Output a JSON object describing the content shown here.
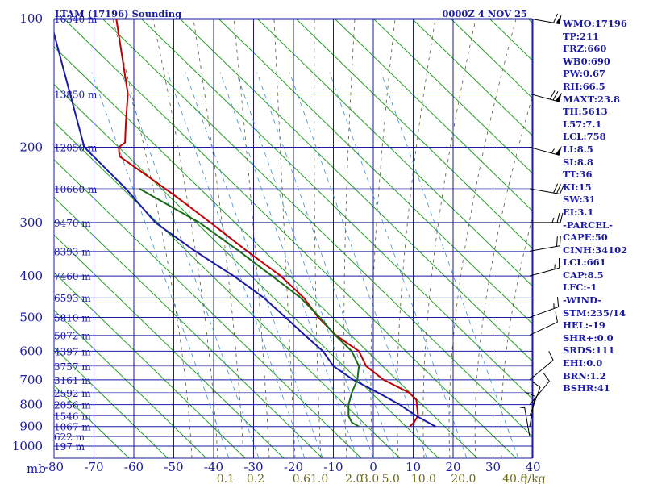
{
  "header": {
    "station": "LTAM (17196) Sounding",
    "time": "0000Z  4 NOV 25"
  },
  "chart_data": {
    "type": "line",
    "x_axis_label": "mb",
    "x_ticks": [
      -80,
      -70,
      -60,
      -50,
      -40,
      -30,
      -20,
      -10,
      0,
      10,
      20,
      30,
      40
    ],
    "p_ticks": [
      100,
      200,
      300,
      400,
      500,
      600,
      700,
      800,
      900,
      1000
    ],
    "height_labels": [
      {
        "p": 100,
        "text": "16340 m"
      },
      {
        "p": 150,
        "text": "13850 m"
      },
      {
        "p": 200,
        "text": "12050 m"
      },
      {
        "p": 250,
        "text": "10660 m"
      },
      {
        "p": 300,
        "text": "9470 m"
      },
      {
        "p": 350,
        "text": "8393 m"
      },
      {
        "p": 400,
        "text": "7460 m"
      },
      {
        "p": 450,
        "text": "6593 m"
      },
      {
        "p": 500,
        "text": "5810 m"
      },
      {
        "p": 550,
        "text": "5072 m"
      },
      {
        "p": 600,
        "text": "4397 m"
      },
      {
        "p": 650,
        "text": "3757 m"
      },
      {
        "p": 700,
        "text": "3161 m"
      },
      {
        "p": 750,
        "text": "2592 m"
      },
      {
        "p": 800,
        "text": "2056 m"
      },
      {
        "p": 850,
        "text": "1546 m"
      },
      {
        "p": 900,
        "text": "1067 m"
      },
      {
        "p": 950,
        "text": "622 m"
      },
      {
        "p": 1000,
        "text": "197 m"
      }
    ],
    "mixing_ratio_labels": [
      {
        "text": "0.1",
        "x": -37
      },
      {
        "text": "0.2",
        "x": -29.5
      },
      {
        "text": "0.6",
        "x": -18
      },
      {
        "text": "1.0",
        "x": -13.5
      },
      {
        "text": "2.0",
        "x": -4.8
      },
      {
        "text": "3.0",
        "x": -0.8
      },
      {
        "text": "5.0",
        "x": 4.4
      },
      {
        "text": "10.0",
        "x": 12.6
      },
      {
        "text": "20.0",
        "x": 22.6
      },
      {
        "text": "40.0",
        "x": 35.5
      },
      {
        "text": "g/kg",
        "x": 40
      }
    ],
    "series": [
      {
        "role": "temperature",
        "color": "#c00000",
        "points": [
          {
            "p": 100,
            "x": -64.4
          },
          {
            "p": 150,
            "x": -61.5
          },
          {
            "p": 175,
            "x": -62
          },
          {
            "p": 195,
            "x": -62.2
          },
          {
            "p": 200,
            "x": -63.8
          },
          {
            "p": 210,
            "x": -63.6
          },
          {
            "p": 230,
            "x": -57.6
          },
          {
            "p": 260,
            "x": -49.6
          },
          {
            "p": 300,
            "x": -40.8
          },
          {
            "p": 350,
            "x": -31.6
          },
          {
            "p": 400,
            "x": -23.2
          },
          {
            "p": 450,
            "x": -17.4
          },
          {
            "p": 500,
            "x": -13.8
          },
          {
            "p": 550,
            "x": -9.4
          },
          {
            "p": 600,
            "x": -3.6
          },
          {
            "p": 650,
            "x": -1.8
          },
          {
            "p": 700,
            "x": 2.6
          },
          {
            "p": 750,
            "x": 9
          },
          {
            "p": 780,
            "x": 10.8
          },
          {
            "p": 850,
            "x": 11.2
          },
          {
            "p": 880,
            "x": 10.2
          },
          {
            "p": 900,
            "x": 9.2
          }
        ]
      },
      {
        "role": "dewpoint",
        "color": "#1a1aa6",
        "points": [
          {
            "p": 100,
            "x": -81
          },
          {
            "p": 200,
            "x": -72.4
          },
          {
            "p": 250,
            "x": -62
          },
          {
            "p": 300,
            "x": -54.6
          },
          {
            "p": 350,
            "x": -44.6
          },
          {
            "p": 400,
            "x": -35
          },
          {
            "p": 450,
            "x": -27.4
          },
          {
            "p": 500,
            "x": -22
          },
          {
            "p": 550,
            "x": -17.2
          },
          {
            "p": 600,
            "x": -12.6
          },
          {
            "p": 650,
            "x": -10
          },
          {
            "p": 700,
            "x": -5
          },
          {
            "p": 750,
            "x": 1.2
          },
          {
            "p": 800,
            "x": 6.6
          },
          {
            "p": 850,
            "x": 10.8
          },
          {
            "p": 900,
            "x": 15.6
          }
        ]
      },
      {
        "role": "parcel",
        "color": "#1b6b1b",
        "points": [
          {
            "p": 250,
            "x": -58.6
          },
          {
            "p": 300,
            "x": -43.6
          },
          {
            "p": 350,
            "x": -33.6
          },
          {
            "p": 400,
            "x": -25.4
          },
          {
            "p": 450,
            "x": -18.2
          },
          {
            "p": 500,
            "x": -13.4
          },
          {
            "p": 550,
            "x": -9.6
          },
          {
            "p": 600,
            "x": -5.4
          },
          {
            "p": 650,
            "x": -3.6
          },
          {
            "p": 700,
            "x": -4
          },
          {
            "p": 750,
            "x": -5.4
          },
          {
            "p": 800,
            "x": -6.2
          },
          {
            "p": 850,
            "x": -6.2
          },
          {
            "p": 880,
            "x": -5.4
          },
          {
            "p": 900,
            "x": -3.6
          }
        ]
      }
    ],
    "wind_barbs": [
      {
        "p": 100,
        "dir": 280,
        "kt": 60
      },
      {
        "p": 150,
        "dir": 285,
        "kt": 70
      },
      {
        "p": 200,
        "dir": 285,
        "kt": 55
      },
      {
        "p": 250,
        "dir": 280,
        "kt": 30
      },
      {
        "p": 300,
        "dir": 270,
        "kt": 25
      },
      {
        "p": 350,
        "dir": 260,
        "kt": 20
      },
      {
        "p": 400,
        "dir": 255,
        "kt": 15
      },
      {
        "p": 500,
        "dir": 250,
        "kt": 15
      },
      {
        "p": 550,
        "dir": 245,
        "kt": 10
      },
      {
        "p": 700,
        "dir": 230,
        "kt": 10
      },
      {
        "p": 800,
        "dir": 220,
        "kt": 10
      },
      {
        "p": 850,
        "dir": 200,
        "kt": 10
      },
      {
        "p": 900,
        "dir": 190,
        "kt": 10
      },
      {
        "p": 950,
        "dir": 170,
        "kt": 5
      }
    ]
  },
  "stats": [
    "WMO:17196",
    "TP:211",
    "FRZ:660",
    "WB0:690",
    "PW:0.67",
    "RH:66.5",
    "MAXT:23.8",
    "TH:5613",
    "L57:7.1",
    "LCL:758",
    "LI:8.5",
    "SI:8.8",
    "TT:36",
    "KI:15",
    "SW:31",
    "EI:3.1",
    "-PARCEL-",
    "CAPE:50",
    "CINH:34102",
    "LCL:661",
    "CAP:8.5",
    "LFC:-1",
    "-WIND-",
    "STM:235/14",
    "HEL:-19",
    "SHR+:0.0",
    "SRDS:111",
    "EHI:0.0",
    "BRN:1.2",
    "BSHR:41"
  ]
}
